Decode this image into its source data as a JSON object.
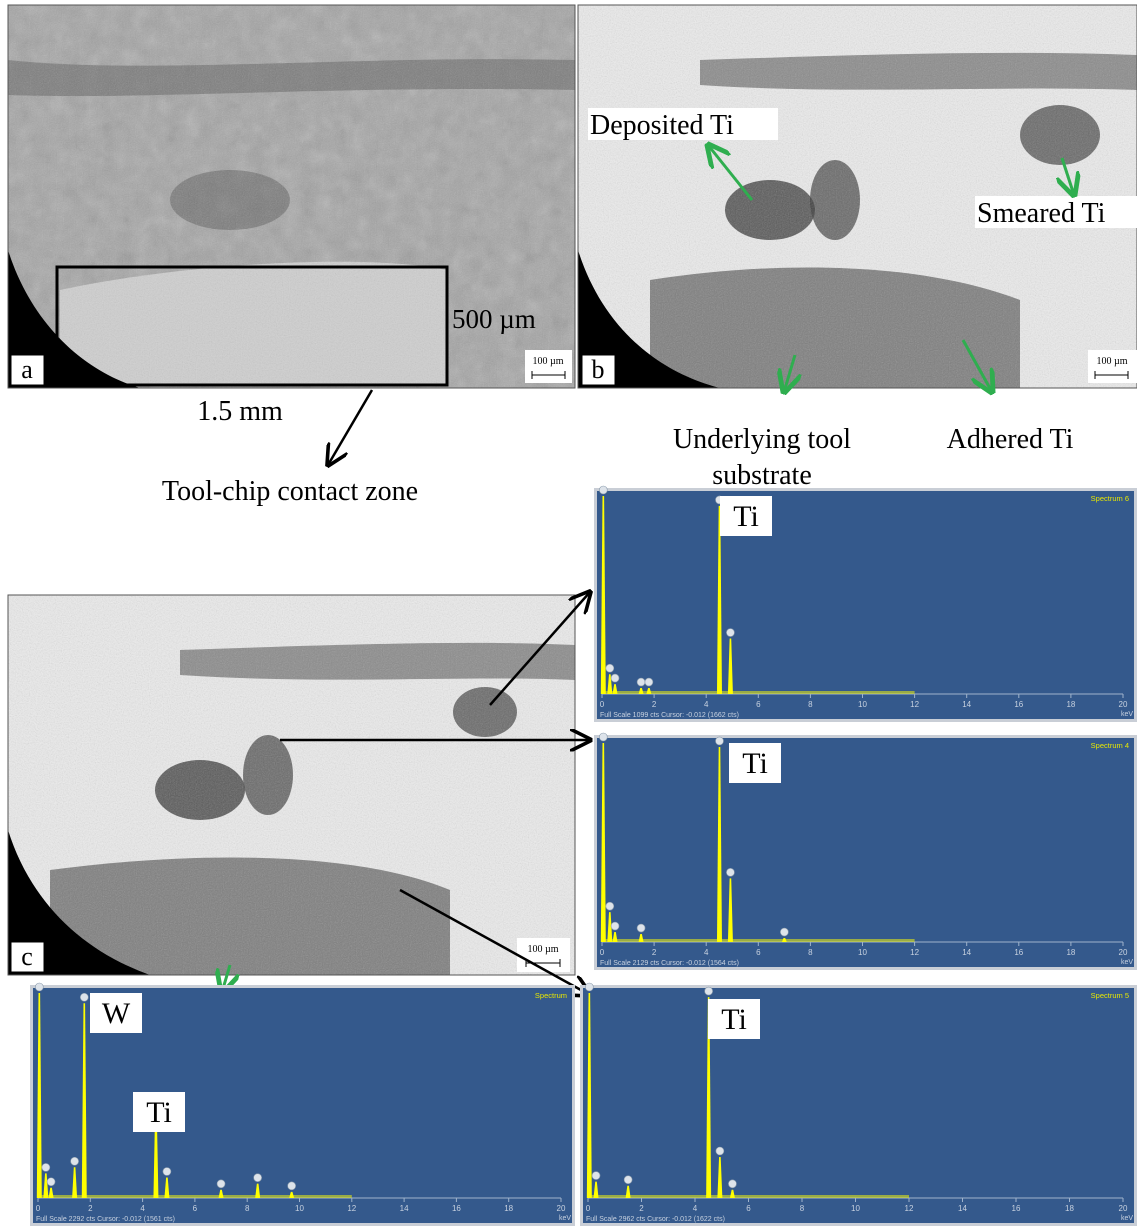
{
  "panels": {
    "a": {
      "label": "a",
      "scale_bar": "100 µm",
      "height_label": "500 µm",
      "width_label": "1.5 mm",
      "annotation": "Tool-chip contact zone"
    },
    "b": {
      "label": "b",
      "scale_bar": "100 µm",
      "annotations": [
        "Deposited Ti",
        "Smeared Ti",
        "Underlying tool",
        "substrate",
        "Adhered Ti"
      ]
    },
    "c": {
      "label": "c",
      "scale_bar": "100 µm"
    }
  },
  "spectra": [
    {
      "title": "Spectrum 6",
      "element_labels": [
        "Ti"
      ],
      "footer": "Full Scale 1099 cts Cursor: -0.012 (1662 cts)",
      "axis_ticks": [
        0,
        2,
        4,
        6,
        8,
        10,
        12,
        14,
        16,
        18,
        20
      ],
      "axis_unit": "keV"
    },
    {
      "title": "Spectrum 4",
      "element_labels": [
        "Ti"
      ],
      "footer": "Full Scale 2129 cts Cursor: -0.012 (1564 cts)",
      "axis_ticks": [
        0,
        2,
        4,
        6,
        8,
        10,
        12,
        14,
        16,
        18,
        20
      ],
      "axis_unit": "keV"
    },
    {
      "title": "Spectrum 5",
      "element_labels": [
        "Ti"
      ],
      "footer": "Full Scale 2962 cts Cursor: -0.012 (1622 cts)",
      "axis_ticks": [
        0,
        2,
        4,
        6,
        8,
        10,
        12,
        14,
        16,
        18,
        20
      ],
      "axis_unit": "keV"
    },
    {
      "title": "Spectrum",
      "element_labels": [
        "W",
        "Ti"
      ],
      "footer": "Full Scale 2292 cts Cursor: -0.012 (1561 cts)",
      "axis_ticks": [
        0,
        2,
        4,
        6,
        8,
        10,
        12,
        14,
        16,
        18,
        20
      ],
      "axis_unit": "keV"
    }
  ]
}
